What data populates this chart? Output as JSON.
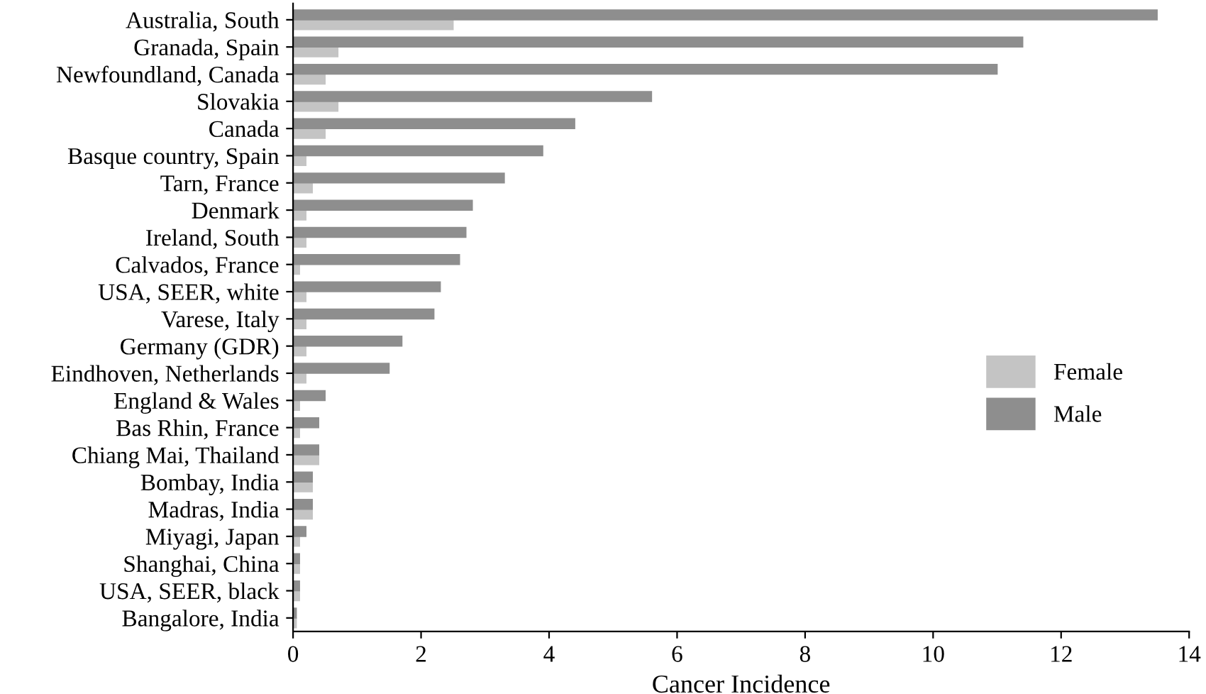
{
  "chart_data": {
    "type": "bar",
    "orientation": "horizontal",
    "xlabel": "Cancer Incidence",
    "categories": [
      "Australia, South",
      "Granada, Spain",
      "Newfoundland, Canada",
      "Slovakia",
      "Canada",
      "Basque country, Spain",
      "Tarn, France",
      "Denmark",
      "Ireland, South",
      "Calvados, France",
      "USA, SEER, white",
      "Varese, Italy",
      "Germany (GDR)",
      "Eindhoven, Netherlands",
      "England & Wales",
      "Bas Rhin, France",
      "Chiang Mai, Thailand",
      "Bombay, India",
      "Madras, India",
      "Miyagi, Japan",
      "Shanghai, China",
      "USA, SEER, black",
      "Bangalore, India"
    ],
    "series": [
      {
        "name": "Female",
        "color": "#c4c4c4",
        "values": [
          2.5,
          0.7,
          0.5,
          0.7,
          0.5,
          0.2,
          0.3,
          0.2,
          0.2,
          0.1,
          0.2,
          0.2,
          0.2,
          0.2,
          0.1,
          0.1,
          0.4,
          0.3,
          0.3,
          0.1,
          0.1,
          0.1,
          0.05
        ]
      },
      {
        "name": "Male",
        "color": "#8e8e8e",
        "values": [
          13.5,
          11.4,
          11.0,
          5.6,
          4.4,
          3.9,
          3.3,
          2.8,
          2.7,
          2.6,
          2.3,
          2.2,
          1.7,
          1.5,
          0.5,
          0.4,
          0.4,
          0.3,
          0.3,
          0.2,
          0.1,
          0.1,
          0.05
        ]
      }
    ],
    "xlim": [
      0,
      14
    ],
    "xticks": [
      0,
      2,
      4,
      6,
      8,
      10,
      12,
      14
    ],
    "grid": false,
    "legend": "right"
  }
}
